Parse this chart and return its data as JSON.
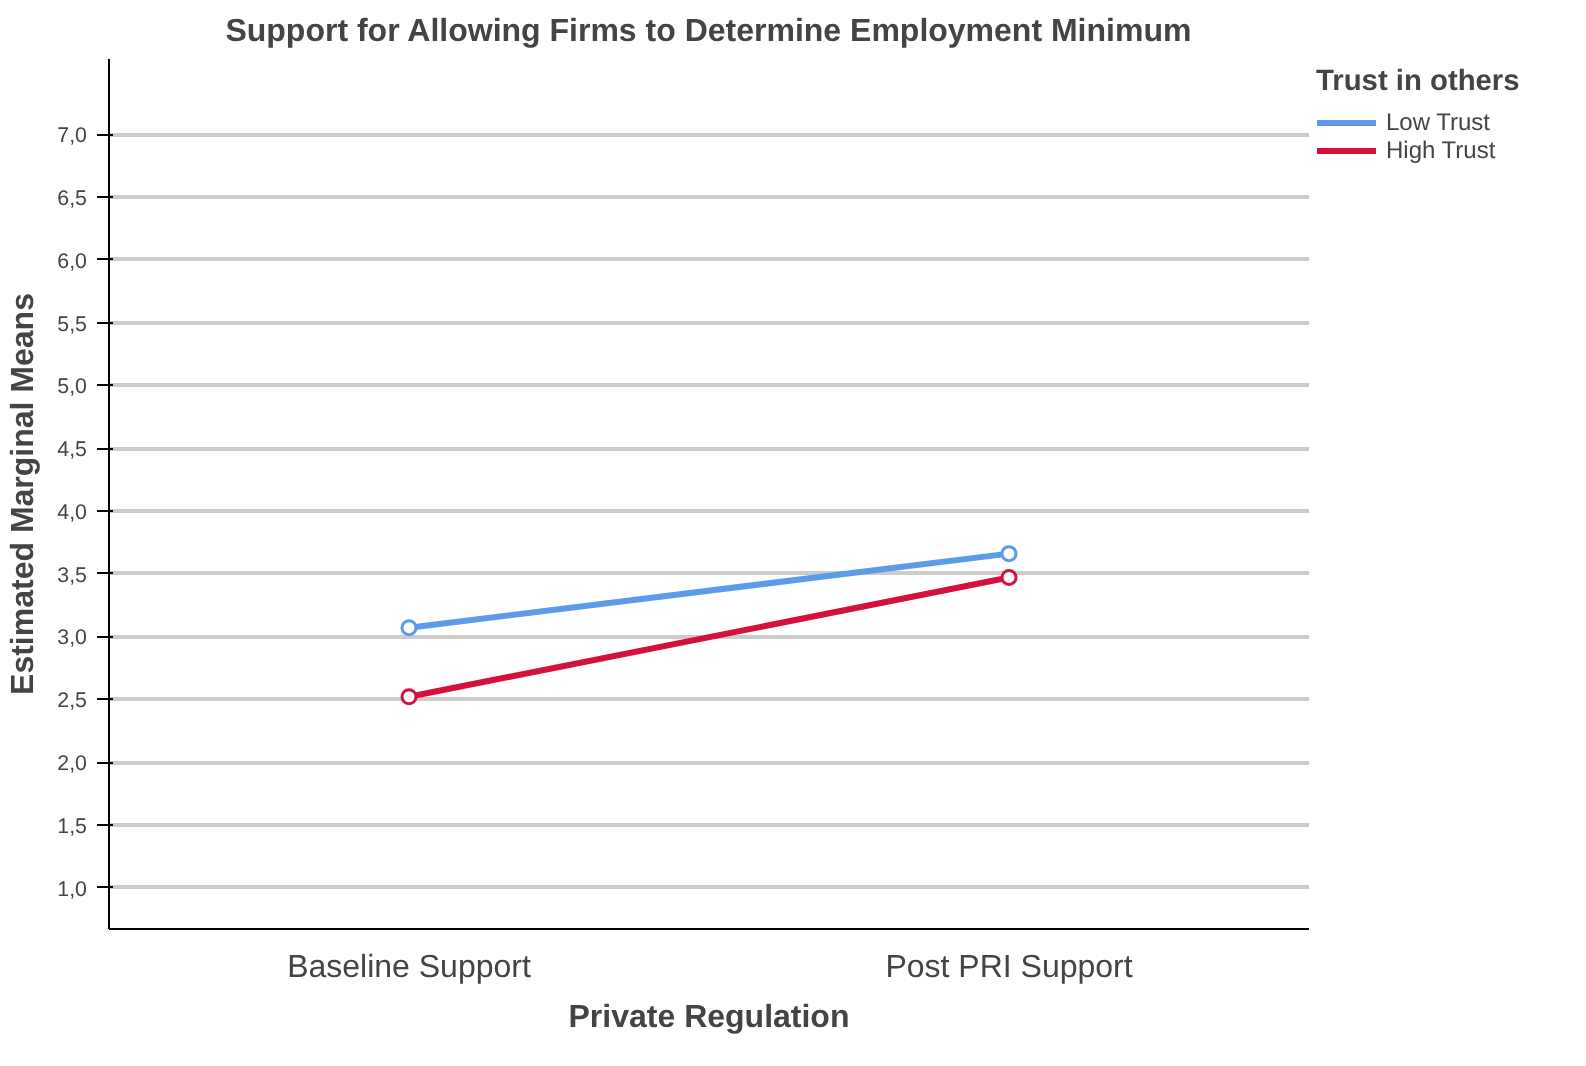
{
  "chart_data": {
    "type": "line",
    "title": "Support for Allowing Firms to Determine Employment Minimum",
    "xlabel": "Private Regulation",
    "ylabel": "Estimated Marginal Means",
    "legend_title": "Trust in others",
    "categories": [
      "Baseline Support",
      "Post PRI Support"
    ],
    "series": [
      {
        "name": "Low Trust",
        "color": "#5b9bea",
        "values": [
          3.07,
          3.66
        ]
      },
      {
        "name": "High Trust",
        "color": "#d5103a",
        "values": [
          2.52,
          3.47
        ]
      }
    ],
    "ylim": [
      0.67,
      7.6
    ],
    "yticks": [
      {
        "value": 1.0,
        "label": "1,0"
      },
      {
        "value": 1.5,
        "label": "1,5"
      },
      {
        "value": 2.0,
        "label": "2,0"
      },
      {
        "value": 2.5,
        "label": "2,5"
      },
      {
        "value": 3.0,
        "label": "3,0"
      },
      {
        "value": 3.5,
        "label": "3,5"
      },
      {
        "value": 4.0,
        "label": "4,0"
      },
      {
        "value": 4.5,
        "label": "4,5"
      },
      {
        "value": 5.0,
        "label": "5,0"
      },
      {
        "value": 5.5,
        "label": "5,5"
      },
      {
        "value": 6.0,
        "label": "6,0"
      },
      {
        "value": 6.5,
        "label": "6,5"
      },
      {
        "value": 7.0,
        "label": "7,0"
      }
    ],
    "grid": "y",
    "legend": "right",
    "marker": "circle",
    "line_style": "solid"
  }
}
